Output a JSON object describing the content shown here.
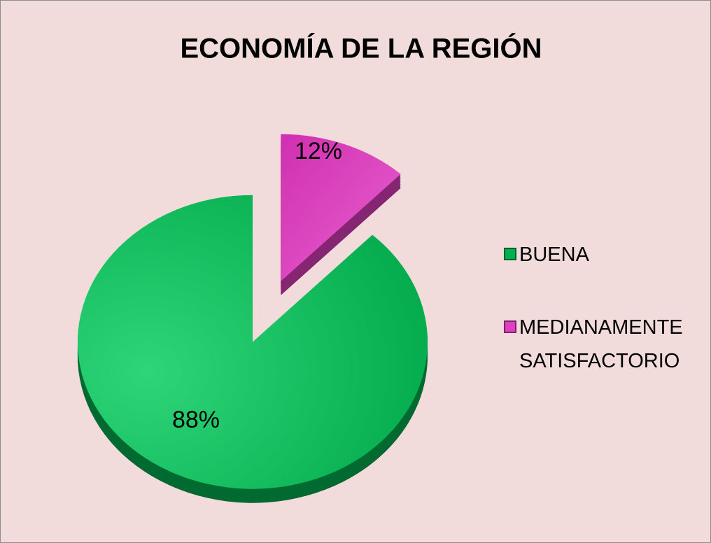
{
  "chart_data": {
    "type": "pie",
    "title": "ECONOMÍA DE LA REGIÓN",
    "categories": [
      "BUENA",
      "MEDIANAMENTE SATISFACTORIO"
    ],
    "values": [
      88,
      12
    ],
    "value_labels": [
      "88%",
      "12%"
    ],
    "colors": [
      "#00b050",
      "#e040c0"
    ],
    "legend": "right"
  }
}
